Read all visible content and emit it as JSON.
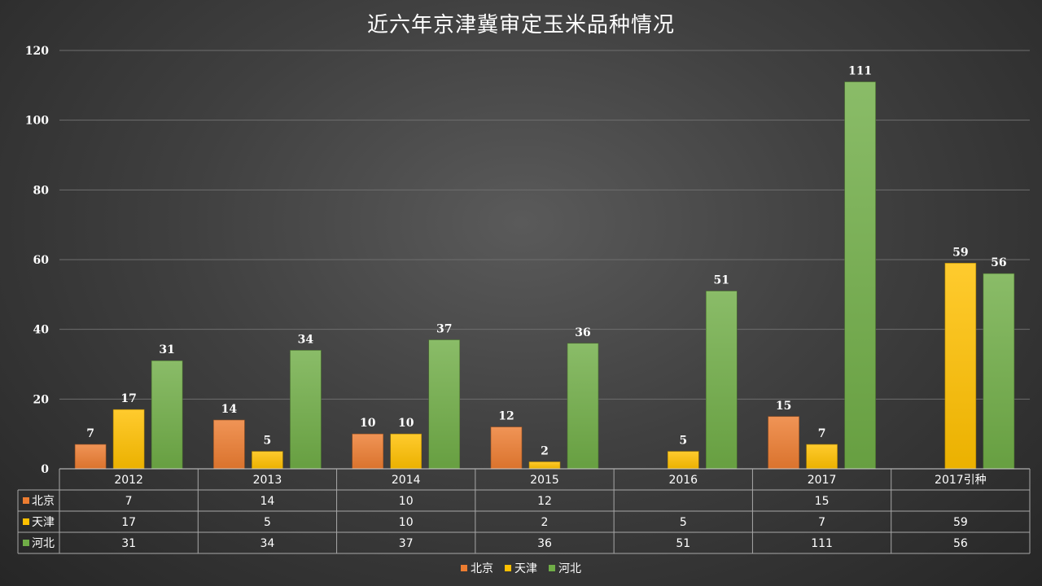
{
  "chart_data": {
    "type": "bar",
    "title": "近六年京津冀审定玉米品种情况",
    "categories": [
      "2012",
      "2013",
      "2014",
      "2015",
      "2016",
      "2017",
      "2017引种"
    ],
    "series": [
      {
        "name": "北京",
        "color": "#ED7D31",
        "values": [
          7,
          14,
          10,
          12,
          null,
          15,
          null
        ]
      },
      {
        "name": "天津",
        "color": "#FFC000",
        "values": [
          17,
          5,
          10,
          2,
          5,
          7,
          59
        ]
      },
      {
        "name": "河北",
        "color": "#70AD47",
        "values": [
          31,
          34,
          37,
          36,
          51,
          111,
          56
        ]
      }
    ],
    "ylim": [
      0,
      120
    ],
    "yticks": [
      0,
      20,
      40,
      60,
      80,
      100,
      120
    ],
    "grid": true,
    "data_table": true,
    "legend_position": "bottom"
  }
}
